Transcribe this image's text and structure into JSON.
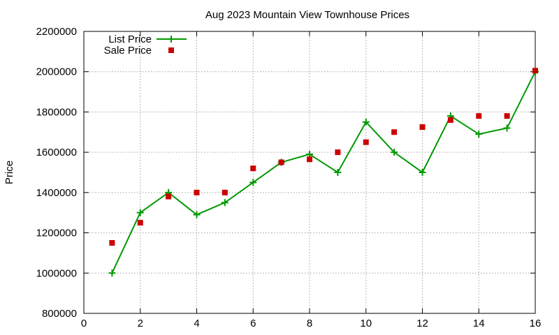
{
  "chart_data": {
    "type": "line",
    "title": "Aug 2023 Mountain View Townhouse Prices",
    "xlabel": "",
    "ylabel": "Price",
    "xlim": [
      0,
      16
    ],
    "ylim": [
      800000,
      2200000
    ],
    "xticks": [
      0,
      2,
      4,
      6,
      8,
      10,
      12,
      14,
      16
    ],
    "yticks": [
      800000,
      1000000,
      1200000,
      1400000,
      1600000,
      1800000,
      2000000,
      2200000
    ],
    "grid": true,
    "legend_position": "top-left",
    "series": [
      {
        "name": "List Price",
        "style": "line-with-plus-markers",
        "color": "#009900",
        "x": [
          1,
          2,
          3,
          4,
          5,
          6,
          7,
          8,
          9,
          10,
          11,
          12,
          13,
          14,
          15,
          16
        ],
        "values": [
          1000000,
          1300000,
          1400000,
          1290000,
          1350000,
          1450000,
          1550000,
          1590000,
          1500000,
          1750000,
          1600000,
          1500000,
          1780000,
          1690000,
          1720000,
          2000000
        ]
      },
      {
        "name": "Sale Price",
        "style": "square-markers",
        "color": "#cc0000",
        "x": [
          1,
          2,
          3,
          4,
          5,
          6,
          7,
          8,
          9,
          10,
          11,
          12,
          13,
          14,
          15,
          16
        ],
        "values": [
          1150000,
          1250000,
          1380000,
          1400000,
          1400000,
          1520000,
          1550000,
          1565000,
          1600000,
          1650000,
          1700000,
          1725000,
          1760000,
          1780000,
          1780000,
          2005000
        ]
      }
    ]
  }
}
